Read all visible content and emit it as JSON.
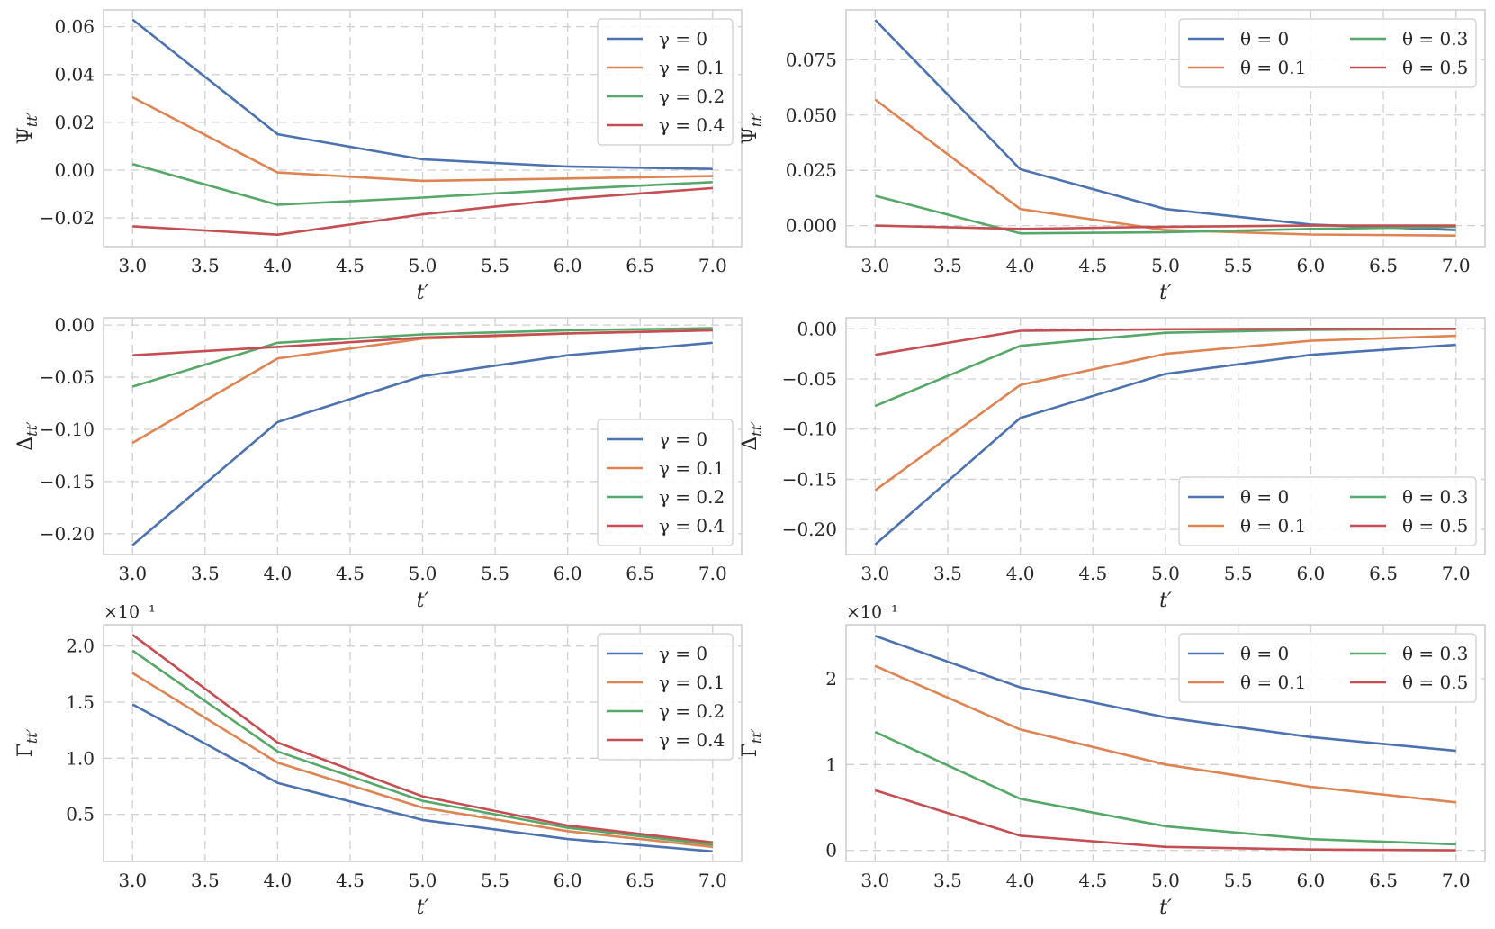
{
  "chart_data": [
    {
      "type": "line",
      "xlabel": "t′",
      "ylabel": "Ψtt′",
      "xlim": [
        2.8,
        7.2
      ],
      "ylim": [
        -0.032,
        0.067
      ],
      "xticks": [
        "3.0",
        "3.5",
        "4.0",
        "4.5",
        "5.0",
        "5.5",
        "6.0",
        "6.5",
        "7.0"
      ],
      "yticks": [
        {
          "v": -0.02,
          "label": "−0.02"
        },
        {
          "v": 0,
          "label": "0.00"
        },
        {
          "v": 0.02,
          "label": "0.02"
        },
        {
          "v": 0.04,
          "label": "0.04"
        },
        {
          "v": 0.06,
          "label": "0.06"
        }
      ],
      "legend_position": "top-right",
      "legend_columns": 1,
      "x": [
        3,
        4,
        5,
        6,
        7
      ],
      "series": [
        {
          "name": "γ = 0",
          "color": "#4c72b0",
          "values": [
            0.063,
            0.015,
            0.0045,
            0.0015,
            0.0005
          ]
        },
        {
          "name": "γ = 0.1",
          "color": "#dd8452",
          "values": [
            0.0305,
            -0.001,
            -0.0045,
            -0.0035,
            -0.0025
          ]
        },
        {
          "name": "γ = 0.2",
          "color": "#55a868",
          "values": [
            0.0025,
            -0.0145,
            -0.0115,
            -0.008,
            -0.005
          ]
        },
        {
          "name": "γ = 0.4",
          "color": "#c44e52",
          "values": [
            -0.0235,
            -0.027,
            -0.0185,
            -0.012,
            -0.0075
          ]
        }
      ]
    },
    {
      "type": "line",
      "xlabel": "t′",
      "ylabel": "Ψtt′",
      "xlim": [
        2.8,
        7.2
      ],
      "ylim": [
        -0.0095,
        0.0975
      ],
      "xticks": [
        "3.0",
        "3.5",
        "4.0",
        "4.5",
        "5.0",
        "5.5",
        "6.0",
        "6.5",
        "7.0"
      ],
      "yticks": [
        {
          "v": 0,
          "label": "0.000"
        },
        {
          "v": 0.025,
          "label": "0.025"
        },
        {
          "v": 0.05,
          "label": "0.050"
        },
        {
          "v": 0.075,
          "label": "0.075"
        }
      ],
      "legend_position": "top-right",
      "legend_columns": 2,
      "x": [
        3,
        4,
        5,
        6,
        7
      ],
      "series": [
        {
          "name": "θ = 0",
          "color": "#4c72b0",
          "values": [
            0.093,
            0.0255,
            0.0075,
            0.0005,
            -0.002
          ]
        },
        {
          "name": "θ = 0.1",
          "color": "#dd8452",
          "values": [
            0.057,
            0.0075,
            -0.002,
            -0.004,
            -0.0045
          ]
        },
        {
          "name": "θ = 0.3",
          "color": "#55a868",
          "values": [
            0.0135,
            -0.0035,
            -0.003,
            -0.0015,
            -0.0005
          ]
        },
        {
          "name": "θ = 0.5",
          "color": "#c44e52",
          "values": [
            0.0,
            -0.0015,
            -0.0005,
            0.0,
            0.0
          ]
        }
      ]
    },
    {
      "type": "line",
      "xlabel": "t′",
      "ylabel": "Δtt′",
      "xlim": [
        2.8,
        7.2
      ],
      "ylim": [
        -0.22,
        0.007
      ],
      "xticks": [
        "3.0",
        "3.5",
        "4.0",
        "4.5",
        "5.0",
        "5.5",
        "6.0",
        "6.5",
        "7.0"
      ],
      "yticks": [
        {
          "v": -0.2,
          "label": "−0.20"
        },
        {
          "v": -0.15,
          "label": "−0.15"
        },
        {
          "v": -0.1,
          "label": "−0.10"
        },
        {
          "v": -0.05,
          "label": "−0.05"
        },
        {
          "v": 0,
          "label": "0.00"
        }
      ],
      "legend_position": "lower-right",
      "legend_columns": 1,
      "x": [
        3,
        4,
        5,
        6,
        7
      ],
      "series": [
        {
          "name": "γ = 0",
          "color": "#4c72b0",
          "values": [
            -0.211,
            -0.093,
            -0.049,
            -0.029,
            -0.017
          ]
        },
        {
          "name": "γ = 0.1",
          "color": "#dd8452",
          "values": [
            -0.113,
            -0.032,
            -0.013,
            -0.008,
            -0.005
          ]
        },
        {
          "name": "γ = 0.2",
          "color": "#55a868",
          "values": [
            -0.059,
            -0.017,
            -0.009,
            -0.005,
            -0.003
          ]
        },
        {
          "name": "γ = 0.4",
          "color": "#c44e52",
          "values": [
            -0.029,
            -0.021,
            -0.012,
            -0.008,
            -0.005
          ]
        }
      ]
    },
    {
      "type": "line",
      "xlabel": "t′",
      "ylabel": "Δtt′",
      "xlim": [
        2.8,
        7.2
      ],
      "ylim": [
        -0.225,
        0.011
      ],
      "xticks": [
        "3.0",
        "3.5",
        "4.0",
        "4.5",
        "5.0",
        "5.5",
        "6.0",
        "6.5",
        "7.0"
      ],
      "yticks": [
        {
          "v": -0.2,
          "label": "−0.20"
        },
        {
          "v": -0.15,
          "label": "−0.15"
        },
        {
          "v": -0.1,
          "label": "−0.10"
        },
        {
          "v": -0.05,
          "label": "−0.05"
        },
        {
          "v": 0,
          "label": "0.00"
        }
      ],
      "legend_position": "lower-right",
      "legend_columns": 2,
      "x": [
        3,
        4,
        5,
        6,
        7
      ],
      "series": [
        {
          "name": "θ = 0",
          "color": "#4c72b0",
          "values": [
            -0.215,
            -0.089,
            -0.045,
            -0.026,
            -0.016
          ]
        },
        {
          "name": "θ = 0.1",
          "color": "#dd8452",
          "values": [
            -0.161,
            -0.056,
            -0.025,
            -0.012,
            -0.007
          ]
        },
        {
          "name": "θ = 0.3",
          "color": "#55a868",
          "values": [
            -0.077,
            -0.017,
            -0.004,
            -0.001,
            0.0
          ]
        },
        {
          "name": "θ = 0.5",
          "color": "#c44e52",
          "values": [
            -0.026,
            -0.002,
            -0.0005,
            0.0,
            0.0
          ]
        }
      ]
    },
    {
      "type": "line",
      "xlabel": "t′",
      "ylabel": "Γtt′",
      "multiplier": "×10⁻¹",
      "xlim": [
        2.8,
        7.2
      ],
      "ylim": [
        0.08,
        2.19
      ],
      "xticks": [
        "3.0",
        "3.5",
        "4.0",
        "4.5",
        "5.0",
        "5.5",
        "6.0",
        "6.5",
        "7.0"
      ],
      "yticks": [
        {
          "v": 0.5,
          "label": "0.5"
        },
        {
          "v": 1.0,
          "label": "1.0"
        },
        {
          "v": 1.5,
          "label": "1.5"
        },
        {
          "v": 2.0,
          "label": "2.0"
        }
      ],
      "legend_position": "top-right",
      "legend_columns": 1,
      "x": [
        3,
        4,
        5,
        6,
        7
      ],
      "series": [
        {
          "name": "γ = 0",
          "color": "#4c72b0",
          "values": [
            1.48,
            0.78,
            0.45,
            0.28,
            0.17
          ]
        },
        {
          "name": "γ = 0.1",
          "color": "#dd8452",
          "values": [
            1.76,
            0.96,
            0.56,
            0.35,
            0.21
          ]
        },
        {
          "name": "γ = 0.2",
          "color": "#55a868",
          "values": [
            1.96,
            1.06,
            0.62,
            0.38,
            0.23
          ]
        },
        {
          "name": "γ = 0.4",
          "color": "#c44e52",
          "values": [
            2.1,
            1.14,
            0.66,
            0.4,
            0.25
          ]
        }
      ]
    },
    {
      "type": "line",
      "xlabel": "t′",
      "ylabel": "Γtt′",
      "multiplier": "×10⁻¹",
      "xlim": [
        2.8,
        7.2
      ],
      "ylim": [
        -0.13,
        2.63
      ],
      "xticks": [
        "3.0",
        "3.5",
        "4.0",
        "4.5",
        "5.0",
        "5.5",
        "6.0",
        "6.5",
        "7.0"
      ],
      "yticks": [
        {
          "v": 0,
          "label": "0"
        },
        {
          "v": 1,
          "label": "1"
        },
        {
          "v": 2,
          "label": "2"
        }
      ],
      "legend_position": "top-right",
      "legend_columns": 2,
      "x": [
        3,
        4,
        5,
        6,
        7
      ],
      "series": [
        {
          "name": "θ = 0",
          "color": "#4c72b0",
          "values": [
            2.5,
            1.9,
            1.55,
            1.32,
            1.16
          ]
        },
        {
          "name": "θ = 0.1",
          "color": "#dd8452",
          "values": [
            2.15,
            1.41,
            1.0,
            0.74,
            0.56
          ]
        },
        {
          "name": "θ = 0.3",
          "color": "#55a868",
          "values": [
            1.38,
            0.6,
            0.28,
            0.13,
            0.07
          ]
        },
        {
          "name": "θ = 0.5",
          "color": "#c44e52",
          "values": [
            0.7,
            0.17,
            0.04,
            0.01,
            0.0
          ]
        }
      ]
    }
  ]
}
